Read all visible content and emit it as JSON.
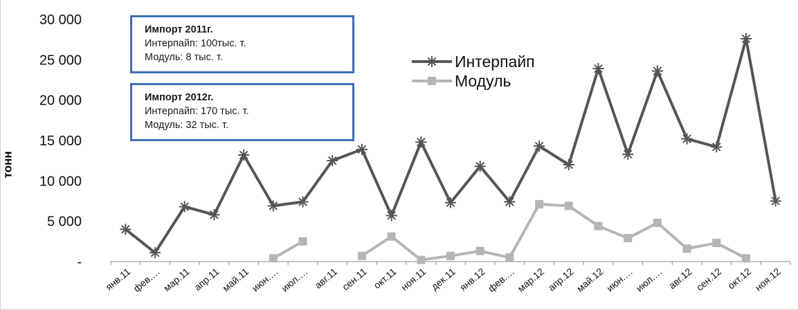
{
  "chart_data": {
    "type": "line",
    "ylabel": "тонн",
    "ylim": [
      0,
      30000
    ],
    "yticks": [
      "-",
      "5 000",
      "10 000",
      "15 000",
      "20 000",
      "25 000",
      "30 000"
    ],
    "categories": [
      "янв.11",
      "фев.…",
      "мар.11",
      "апр.11",
      "май.11",
      "июн.…",
      "июл.…",
      "авг.11",
      "сен.11",
      "окт.11",
      "ноя.11",
      "дек.11",
      "янв.12",
      "фев.…",
      "мар.12",
      "апр.12",
      "май.12",
      "июн.…",
      "июл.…",
      "авг.12",
      "сен.12",
      "окт.12",
      "ноя.12"
    ],
    "series": [
      {
        "name": "Интерпайп",
        "color": "#555555",
        "marker": "star",
        "values": [
          4000,
          1100,
          6800,
          5800,
          13200,
          6900,
          7400,
          12500,
          13900,
          5700,
          14800,
          7300,
          11800,
          7400,
          14300,
          12000,
          23900,
          13300,
          23600,
          15200,
          14200,
          27600,
          7500
        ]
      },
      {
        "name": "Модуль",
        "color": "#b5b5b5",
        "marker": "square",
        "values": [
          null,
          null,
          null,
          null,
          null,
          400,
          2500,
          null,
          700,
          3100,
          200,
          700,
          1300,
          500,
          7100,
          6900,
          4400,
          2900,
          4800,
          1600,
          2300,
          400,
          null
        ]
      }
    ],
    "legend_position": "top-right",
    "annotations": [
      {
        "title": "Импорт 2011г.",
        "lines": [
          "Интерпайп: 100тыс. т.",
          "Модуль: 8 тыс. т."
        ]
      },
      {
        "title": "Импорт 2012г.",
        "lines": [
          "Интерпайп: 170 тыс. т.",
          "Модуль: 32 тыс. т."
        ]
      }
    ]
  }
}
